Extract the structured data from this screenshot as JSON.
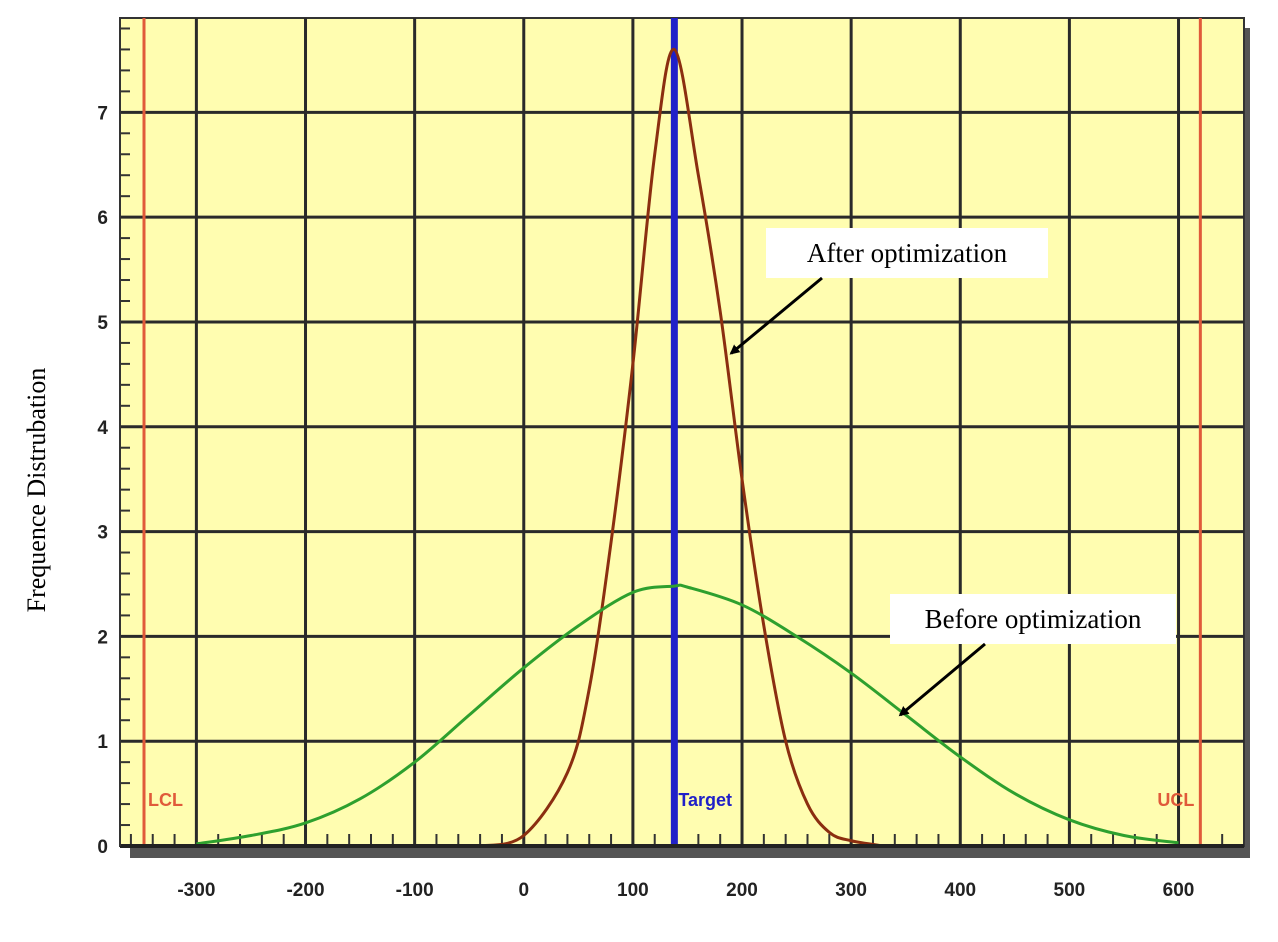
{
  "chart_data": {
    "type": "line",
    "title": "",
    "xlabel": "",
    "ylabel": "Frequence Distrubation",
    "xlim": [
      -370,
      660
    ],
    "ylim": [
      0,
      7.9
    ],
    "x_ticks": [
      -300,
      -200,
      -100,
      0,
      100,
      200,
      300,
      400,
      500,
      600
    ],
    "x_tick_labels": [
      "-300",
      "-200",
      "-100",
      "0",
      "100",
      "200",
      "300",
      "400",
      "500",
      "600"
    ],
    "y_ticks": [
      0,
      1,
      2,
      3,
      4,
      5,
      6,
      7
    ],
    "y_tick_labels": [
      "0",
      "1",
      "2",
      "3",
      "4",
      "5",
      "6",
      "7"
    ],
    "grid": true,
    "background_color": "#fffdb0",
    "series": [
      {
        "color": "#8b2e10",
        "x": [
          -40,
          0,
          40,
          60,
          80,
          100,
          120,
          138,
          160,
          180,
          200,
          220,
          240,
          260,
          280,
          300,
          330
        ],
        "y": [
          0,
          0.1,
          0.7,
          1.5,
          2.9,
          4.6,
          6.6,
          7.6,
          6.4,
          5.1,
          3.5,
          2.1,
          1.0,
          0.4,
          0.13,
          0.05,
          0
        ]
      },
      {
        "color": "#2ea02e",
        "x": [
          -300,
          -250,
          -200,
          -150,
          -100,
          -50,
          0,
          50,
          100,
          138,
          150,
          200,
          250,
          300,
          350,
          400,
          450,
          500,
          550,
          600
        ],
        "y": [
          0.02,
          0.1,
          0.22,
          0.45,
          0.8,
          1.25,
          1.7,
          2.1,
          2.42,
          2.48,
          2.47,
          2.3,
          2.0,
          1.65,
          1.25,
          0.85,
          0.5,
          0.25,
          0.1,
          0.03
        ]
      }
    ],
    "reference_lines": [
      {
        "label": "LCL",
        "x": -348,
        "color": "#e05a3a"
      },
      {
        "label": "Target",
        "x": 138,
        "color": "#2020c8"
      },
      {
        "label": "UCL",
        "x": 620,
        "color": "#e05a3a"
      }
    ],
    "annotations": [
      {
        "text": "After optimization",
        "points_to": [
          190,
          4.7
        ]
      },
      {
        "text": "Before optimization",
        "points_to": [
          345,
          1.25
        ]
      }
    ]
  }
}
